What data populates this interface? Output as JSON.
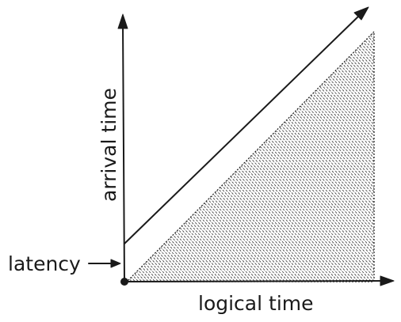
{
  "labels": {
    "y_axis": "arrival time",
    "x_axis": "logical time",
    "latency": "latency"
  }
}
